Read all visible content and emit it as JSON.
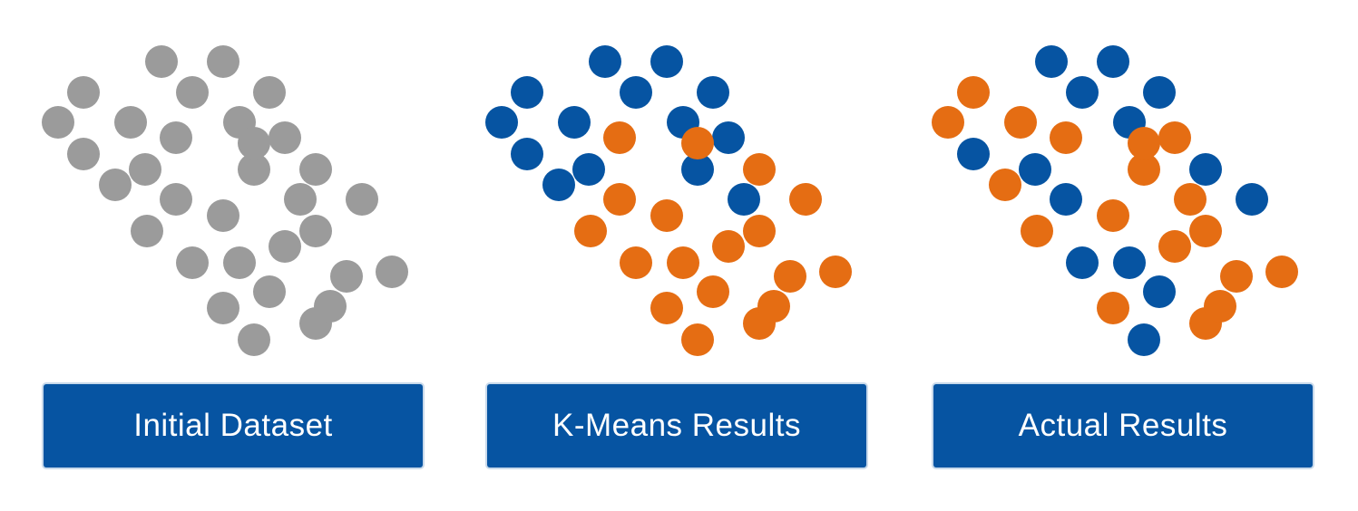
{
  "colors": {
    "background": "#ffffff",
    "label_box": "#0654a2",
    "label_text": "#ffffff",
    "unassigned": "#9b9b9b",
    "cluster_blue": "#0654a2",
    "cluster_orange": "#e56d13"
  },
  "panels": [
    {
      "label": "Initial Dataset",
      "point_color_roles": [
        "gray",
        "gray",
        "gray",
        "gray",
        "gray",
        "gray",
        "gray",
        "gray",
        "gray",
        "gray",
        "gray",
        "gray",
        "gray",
        "gray",
        "gray",
        "gray",
        "gray",
        "gray",
        "gray",
        "gray",
        "gray",
        "gray",
        "gray",
        "gray",
        "gray",
        "gray",
        "gray",
        "gray",
        "gray",
        "gray",
        "gray",
        "gray"
      ]
    },
    {
      "label": "K-Means Results",
      "point_color_roles": [
        "blue",
        "blue",
        "blue",
        "blue",
        "blue",
        "blue",
        "blue",
        "blue",
        "blue",
        "blue",
        "blue",
        "blue",
        "orange",
        "blue",
        "orange",
        "orange",
        "blue",
        "orange",
        "orange",
        "orange",
        "orange",
        "orange",
        "orange",
        "orange",
        "orange",
        "orange",
        "orange",
        "orange",
        "orange",
        "orange",
        "orange",
        "orange"
      ]
    },
    {
      "label": "Actual Results",
      "point_color_roles": [
        "blue",
        "blue",
        "orange",
        "blue",
        "blue",
        "orange",
        "orange",
        "blue",
        "blue",
        "orange",
        "blue",
        "orange",
        "blue",
        "orange",
        "blue",
        "orange",
        "orange",
        "blue",
        "orange",
        "orange",
        "blue",
        "blue",
        "orange",
        "orange",
        "orange",
        "blue",
        "blue",
        "orange",
        "orange",
        "orange",
        "orange",
        "orange"
      ]
    }
  ]
}
